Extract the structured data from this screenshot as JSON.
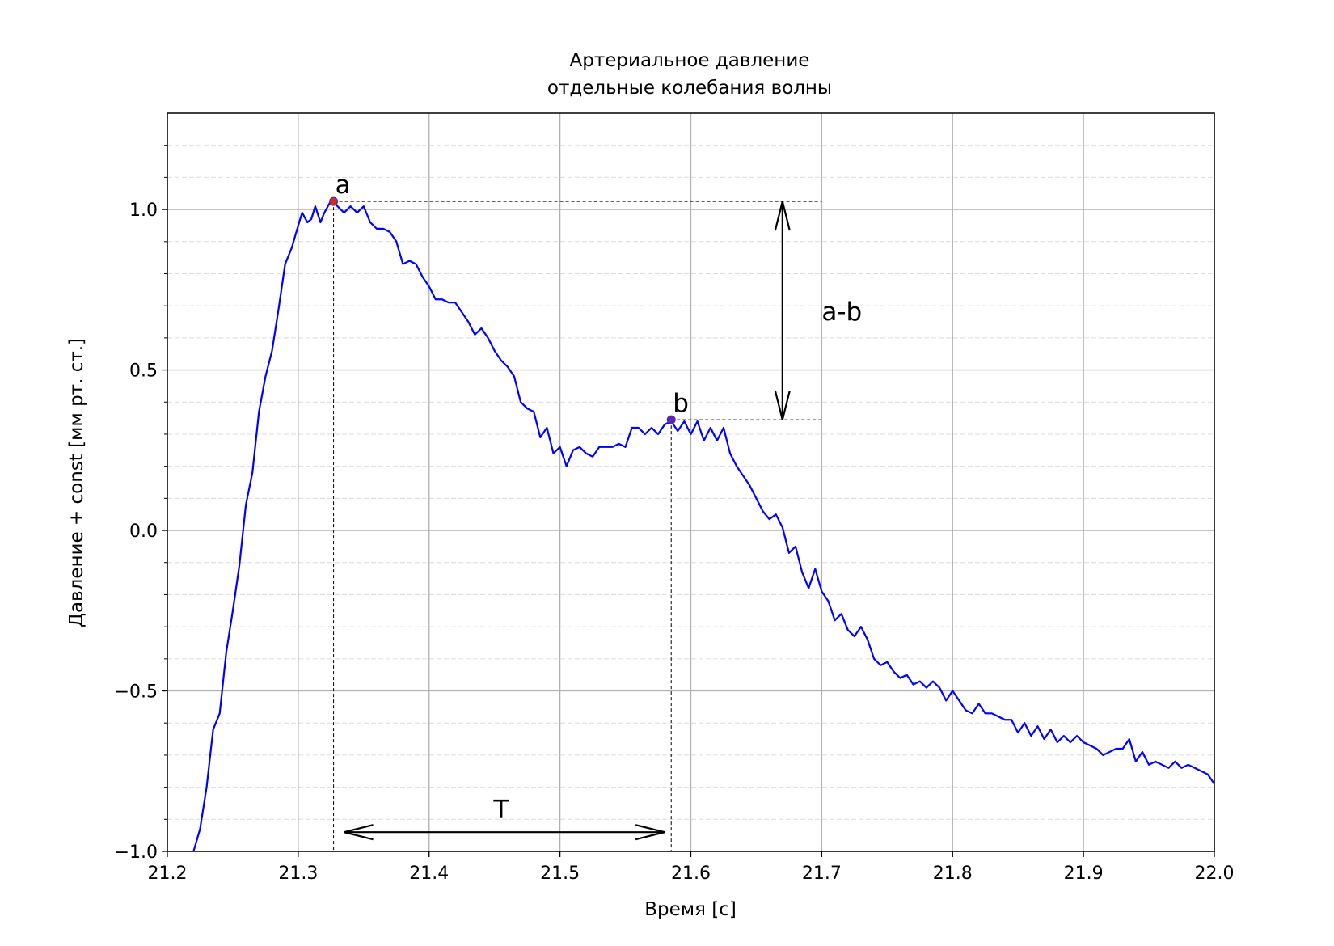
{
  "chart_data": {
    "type": "line",
    "title": "Артериальное давление",
    "subtitle": "отдельные колебания волны",
    "x_label": "Время [с]",
    "y_label": "Давление + const [мм рт. ст.]",
    "xlim": [
      21.2,
      22.0
    ],
    "ylim": [
      -1.0,
      1.3
    ],
    "xticks": [
      21.2,
      21.3,
      21.4,
      21.5,
      21.6,
      21.7,
      21.8,
      21.9,
      {
        "value": 22.0,
        "label": "22.0"
      }
    ],
    "yticks": [
      {
        "value": -1.0,
        "label": "−1.0"
      },
      {
        "value": -0.5,
        "label": "−0.5"
      },
      {
        "value": 0.0,
        "label": "0.0"
      },
      {
        "value": 0.5,
        "label": "0.5"
      },
      {
        "value": 1.0,
        "label": "1.0"
      }
    ],
    "minor_yticks": [
      -0.9,
      -0.8,
      -0.7,
      -0.6,
      -0.4,
      -0.3,
      -0.2,
      -0.1,
      0.1,
      0.2,
      0.3,
      0.4,
      0.6,
      0.7,
      0.8,
      0.9,
      1.1,
      1.2
    ],
    "grid": true,
    "x": [
      21.22,
      21.225,
      21.23,
      21.235,
      21.24,
      21.245,
      21.25,
      21.255,
      21.26,
      21.265,
      21.27,
      21.275,
      21.28,
      21.285,
      21.29,
      21.295,
      21.3,
      21.303,
      21.307,
      21.31,
      21.313,
      21.317,
      21.32,
      21.324,
      21.327,
      21.33,
      21.335,
      21.34,
      21.345,
      21.35,
      21.355,
      21.36,
      21.365,
      21.37,
      21.375,
      21.38,
      21.385,
      21.39,
      21.395,
      21.4,
      21.405,
      21.41,
      21.415,
      21.42,
      21.425,
      21.43,
      21.435,
      21.44,
      21.445,
      21.45,
      21.455,
      21.46,
      21.465,
      21.47,
      21.475,
      21.48,
      21.485,
      21.49,
      21.495,
      21.5,
      21.505,
      21.51,
      21.515,
      21.52,
      21.525,
      21.53,
      21.535,
      21.54,
      21.545,
      21.55,
      21.555,
      21.56,
      21.565,
      21.57,
      21.575,
      21.58,
      21.585,
      21.59,
      21.595,
      21.6,
      21.605,
      21.61,
      21.615,
      21.62,
      21.625,
      21.63,
      21.635,
      21.64,
      21.645,
      21.65,
      21.655,
      21.66,
      21.665,
      21.67,
      21.675,
      21.68,
      21.685,
      21.69,
      21.695,
      21.7,
      21.705,
      21.71,
      21.715,
      21.72,
      21.725,
      21.73,
      21.735,
      21.74,
      21.745,
      21.75,
      21.755,
      21.76,
      21.765,
      21.77,
      21.775,
      21.78,
      21.785,
      21.79,
      21.795,
      21.8,
      21.805,
      21.81,
      21.815,
      21.82,
      21.825,
      21.83,
      21.835,
      21.84,
      21.845,
      21.85,
      21.855,
      21.86,
      21.865,
      21.87,
      21.875,
      21.88,
      21.885,
      21.89,
      21.895,
      21.9,
      21.905,
      21.91,
      21.915,
      21.92,
      21.925,
      21.93,
      21.935,
      21.94,
      21.945,
      21.95,
      21.955,
      21.96,
      21.965,
      21.97,
      21.975,
      21.98,
      21.985,
      21.99,
      21.995,
      22.0
    ],
    "series": [
      {
        "color": "#0000ff",
        "values": [
          -1.0,
          -0.93,
          -0.8,
          -0.62,
          -0.57,
          -0.38,
          -0.25,
          -0.11,
          0.08,
          0.18,
          0.37,
          0.48,
          0.56,
          0.69,
          0.83,
          0.88,
          0.95,
          0.99,
          0.96,
          0.97,
          1.01,
          0.96,
          0.99,
          1.02,
          1.03,
          1.01,
          0.99,
          1.01,
          0.99,
          1.01,
          0.96,
          0.94,
          0.94,
          0.93,
          0.9,
          0.83,
          0.84,
          0.83,
          0.79,
          0.76,
          0.72,
          0.72,
          0.71,
          0.71,
          0.68,
          0.65,
          0.61,
          0.63,
          0.6,
          0.56,
          0.53,
          0.51,
          0.48,
          0.4,
          0.38,
          0.37,
          0.29,
          0.32,
          0.24,
          0.26,
          0.2,
          0.25,
          0.26,
          0.24,
          0.23,
          0.26,
          0.26,
          0.26,
          0.27,
          0.26,
          0.32,
          0.32,
          0.3,
          0.32,
          0.3,
          0.33,
          0.34,
          0.31,
          0.34,
          0.3,
          0.34,
          0.28,
          0.32,
          0.28,
          0.32,
          0.24,
          0.2,
          0.17,
          0.14,
          0.1,
          0.06,
          0.035,
          0.05,
          0.01,
          -0.07,
          -0.05,
          -0.13,
          -0.18,
          -0.12,
          -0.19,
          -0.22,
          -0.28,
          -0.26,
          -0.31,
          -0.33,
          -0.3,
          -0.34,
          -0.4,
          -0.42,
          -0.41,
          -0.44,
          -0.46,
          -0.45,
          -0.48,
          -0.47,
          -0.49,
          -0.47,
          -0.49,
          -0.53,
          -0.5,
          -0.53,
          -0.56,
          -0.57,
          -0.54,
          -0.57,
          -0.57,
          -0.58,
          -0.59,
          -0.59,
          -0.63,
          -0.6,
          -0.64,
          -0.61,
          -0.65,
          -0.62,
          -0.66,
          -0.64,
          -0.66,
          -0.64,
          -0.66,
          -0.67,
          -0.68,
          -0.7,
          -0.69,
          -0.68,
          -0.68,
          -0.65,
          -0.72,
          -0.69,
          -0.73,
          -0.72,
          -0.73,
          -0.74,
          -0.72,
          -0.74,
          -0.73,
          -0.74,
          -0.75,
          -0.76,
          -0.79
        ]
      }
    ],
    "points": [
      {
        "label": "a",
        "x": 21.327,
        "y": 1.025,
        "color": "#d62728"
      },
      {
        "label": "b",
        "x": 21.585,
        "y": 0.345,
        "color": "#6a1fb0"
      }
    ],
    "guide_x_end": 21.7,
    "arrows": [
      {
        "label": "a-b",
        "x": [
          21.67,
          21.67
        ],
        "y": [
          1.025,
          0.345
        ],
        "label_x": 21.7,
        "label_y": 0.68
      },
      {
        "label": "T",
        "x": [
          21.335,
          21.58
        ],
        "y": [
          -0.94,
          -0.94
        ],
        "label_x": 21.455,
        "label_y": -0.87
      }
    ]
  }
}
